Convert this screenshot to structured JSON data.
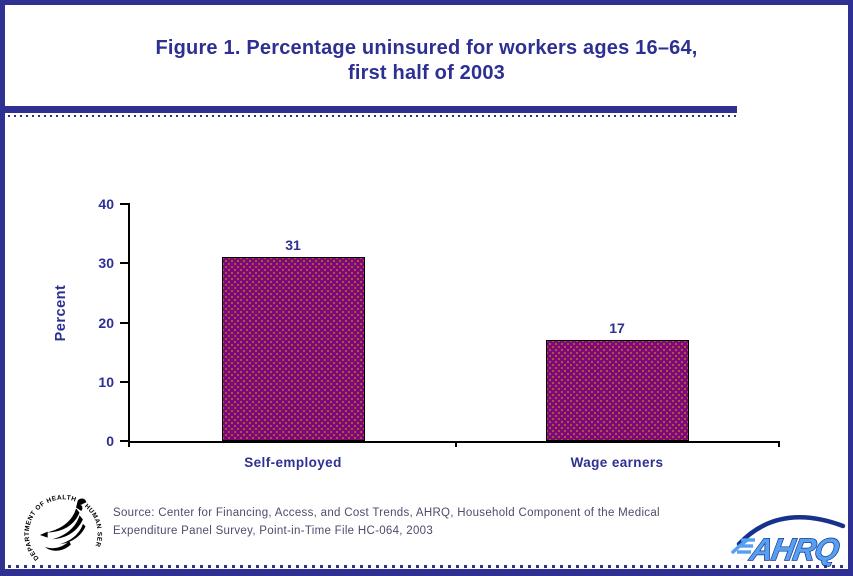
{
  "slide": {
    "title_line1": "Figure 1. Percentage uninsured for workers ages 16–64,",
    "title_line2": "first half of 2003",
    "source_line1": "Source: Center for Financing, Access, and Cost Trends, AHRQ, Household Component of the Medical",
    "source_line2": "Expenditure Panel Survey, Point-in-Time File HC-064, 2003"
  },
  "logos": {
    "ahrq_text": "AHRQ",
    "hhs_seal_text": "DEPARTMENT OF HEALTH & HUMAN SERVICES • USA"
  },
  "colors": {
    "navy": "#2D3092",
    "border_navy": "#2E3192",
    "bar_purple": "#7E0480",
    "bar_dot": "#A8622A",
    "source_color": "#53496B",
    "ahrq_light": "#55A0F2",
    "ahrq_dark": "#16328C",
    "white": "#FFFFFF"
  },
  "chart_data": {
    "type": "bar",
    "categories": [
      "Self-employed",
      "Wage earners"
    ],
    "values": [
      31,
      17
    ],
    "value_labels": [
      "31",
      "17"
    ],
    "title": "Figure 1. Percentage uninsured for workers ages 16–64, first half of 2003",
    "xlabel": "",
    "ylabel": "Percent",
    "ylim": [
      0,
      40
    ],
    "yticks": [
      0,
      10,
      20,
      30,
      40
    ],
    "bar_color": "#7E0480",
    "bar_border_color": "#000000",
    "grid": false,
    "legend": false
  }
}
